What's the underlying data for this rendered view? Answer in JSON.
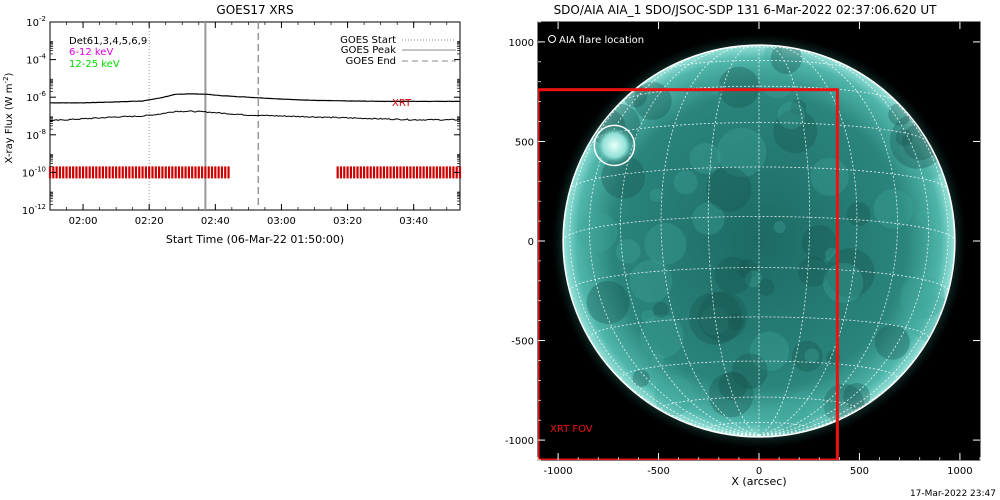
{
  "chart_data": [
    {
      "type": "line",
      "title": "GOES17 XRS",
      "xlabel": "Start Time (06-Mar-22 01:50:00)",
      "ylabel": "X-ray Flux (W m-2)",
      "ylabel_main": "X-ray Flux (W m",
      "ylabel_sup": "-2",
      "ylabel_close": ")",
      "xlim": [
        "01:50",
        "03:54"
      ],
      "ylog": true,
      "ylim_exponent": [
        -12,
        -2
      ],
      "y_ticks": [
        {
          "exp": -12,
          "base": "10",
          "sup": "-12"
        },
        {
          "exp": -10,
          "base": "10",
          "sup": "-10"
        },
        {
          "exp": -8,
          "base": "10",
          "sup": "-8"
        },
        {
          "exp": -6,
          "base": "10",
          "sup": "-6"
        },
        {
          "exp": -4,
          "base": "10",
          "sup": "-4"
        },
        {
          "exp": -2,
          "base": "10",
          "sup": "-2"
        }
      ],
      "x_ticks": [
        "02:00",
        "02:20",
        "02:40",
        "03:00",
        "03:20",
        "03:40"
      ],
      "x_tick_minutes": [
        10,
        30,
        50,
        70,
        90,
        110
      ],
      "detector_label": "Det61,3,4,5,6,9",
      "channels": [
        {
          "label": "6-12 keV",
          "color": "#e000e0"
        },
        {
          "label": "12-25 keV",
          "color": "#00dd00"
        }
      ],
      "legend": {
        "placement": "top-right",
        "entries": [
          {
            "label": "GOES Start",
            "style": "dotted"
          },
          {
            "label": "GOES Peak",
            "style": "solid"
          },
          {
            "label": "GOES End",
            "style": "dashed"
          }
        ]
      },
      "xrt_label": "XRT",
      "xrt_color": "#cc0000",
      "event_lines_minutes": {
        "start": 30,
        "peak": 47,
        "end": 63
      },
      "xrt_coverage_minutes": [
        [
          0,
          54
        ],
        [
          87,
          124
        ]
      ],
      "series": [
        {
          "line": "upper",
          "x_minutes": [
            0,
            10,
            20,
            28,
            33,
            38,
            42,
            47,
            52,
            60,
            70,
            80,
            90,
            100,
            110,
            120,
            124
          ],
          "log10_flux": [
            -6.3,
            -6.3,
            -6.25,
            -6.2,
            -6.05,
            -5.85,
            -5.82,
            -5.84,
            -5.92,
            -6.0,
            -6.1,
            -6.17,
            -6.2,
            -6.22,
            -6.22,
            -6.22,
            -6.22
          ]
        },
        {
          "line": "lower",
          "x_minutes": [
            0,
            10,
            20,
            28,
            33,
            38,
            42,
            47,
            52,
            60,
            70,
            80,
            90,
            100,
            110,
            120,
            124
          ],
          "log10_flux": [
            -7.25,
            -7.15,
            -7.05,
            -7.0,
            -6.9,
            -6.75,
            -6.75,
            -6.78,
            -6.85,
            -6.95,
            -7.0,
            -7.05,
            -7.1,
            -7.15,
            -7.2,
            -7.2,
            -7.2
          ]
        }
      ]
    },
    {
      "type": "scatter",
      "title": "SDO/AIA AIA_1 SDO/JSOC-SDP 131  6-Mar-2022 02:37:06.620 UT",
      "xlabel": "X (arcsec)",
      "ylabel": "",
      "xlim": [
        -1100,
        1100
      ],
      "ylim": [
        -1100,
        1100
      ],
      "x_ticks": [
        "-1000",
        "-500",
        "0",
        "500",
        "1000"
      ],
      "x_tick_values": [
        -1000,
        -500,
        0,
        500,
        1000
      ],
      "y_ticks": [
        "1000",
        "500",
        "0",
        "-500",
        "-1000"
      ],
      "y_tick_values": [
        1000,
        500,
        0,
        -500,
        -1000
      ],
      "solar_radius_arcsec": 975,
      "flare_location_label": "AIA flare location",
      "flare_location_arcsec": {
        "x": -720,
        "y": 480
      },
      "xrt_fov_label": "XRT FOV",
      "xrt_fov_arcsec": {
        "x0": -1100,
        "x1": 390,
        "y0": -1100,
        "y1": 760
      },
      "colors": {
        "disk": "#2a8a82",
        "xrt": "#ee1111",
        "grid": "#ffffff"
      }
    }
  ],
  "footer_timestamp": "17-Mar-2022 23:47"
}
